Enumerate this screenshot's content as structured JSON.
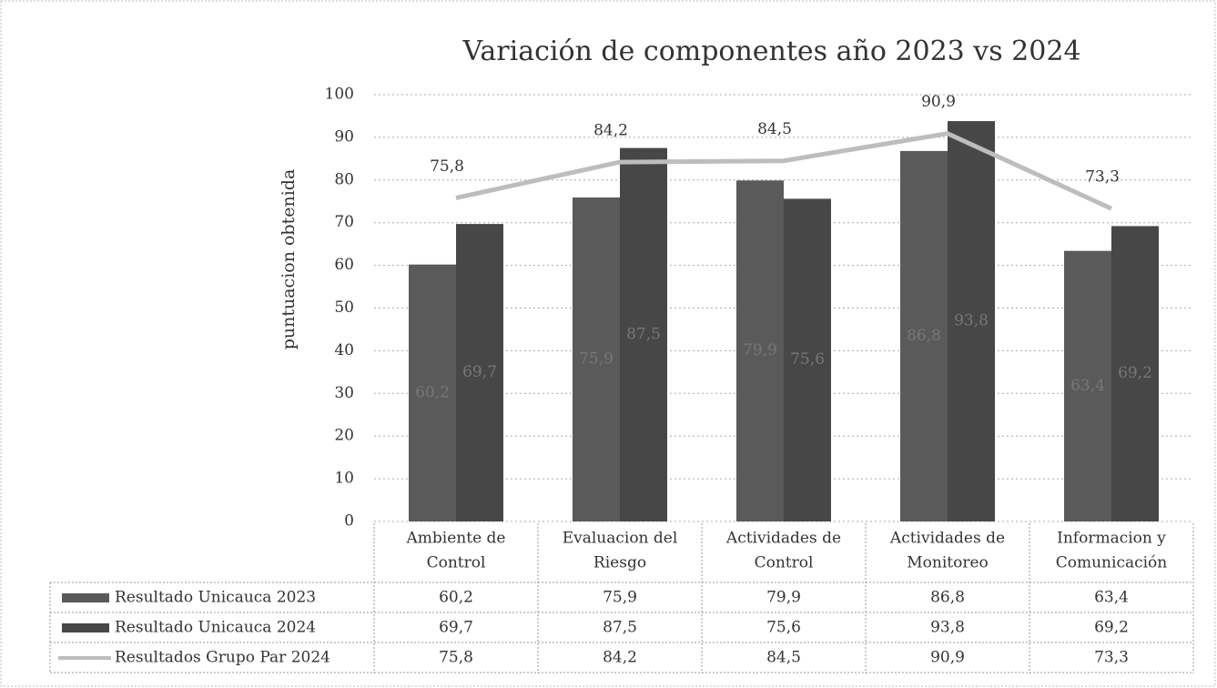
{
  "chart_data": {
    "type": "bar-line",
    "title": "Variación de componentes año 2023 vs 2024",
    "y_label": "puntuacion obtenida",
    "categories": [
      [
        "Ambiente de",
        "Control"
      ],
      [
        "Evaluacion del",
        "Riesgo"
      ],
      [
        "Actividades de",
        "Control"
      ],
      [
        "Actividades de",
        "Monitoreo"
      ],
      [
        "Informacion y",
        "Comunicación"
      ]
    ],
    "ylim": [
      0,
      100
    ],
    "yticks": [
      0,
      10,
      20,
      30,
      40,
      50,
      60,
      70,
      80,
      90,
      100
    ],
    "grid": true,
    "series": [
      {
        "name": "Resultado Unicauca 2023",
        "type": "bar",
        "color": "#5a5a5a",
        "values": [
          60.2,
          75.9,
          79.9,
          86.8,
          63.4
        ],
        "value_labels": [
          "60,2",
          "75,9",
          "79,9",
          "86,8",
          "63,4"
        ]
      },
      {
        "name": "Resultado Unicauca 2024",
        "type": "bar",
        "color": "#474747",
        "values": [
          69.7,
          87.5,
          75.6,
          93.8,
          69.2
        ],
        "value_labels": [
          "69,7",
          "87,5",
          "75,6",
          "93,8",
          "69,2"
        ]
      },
      {
        "name": "Resultados Grupo Par 2024",
        "type": "line",
        "color": "#bdbdbd",
        "values": [
          75.8,
          84.2,
          84.5,
          90.9,
          73.3
        ],
        "value_labels": [
          "75,8",
          "84,2",
          "84,5",
          "90,9",
          "73,3"
        ]
      }
    ]
  }
}
